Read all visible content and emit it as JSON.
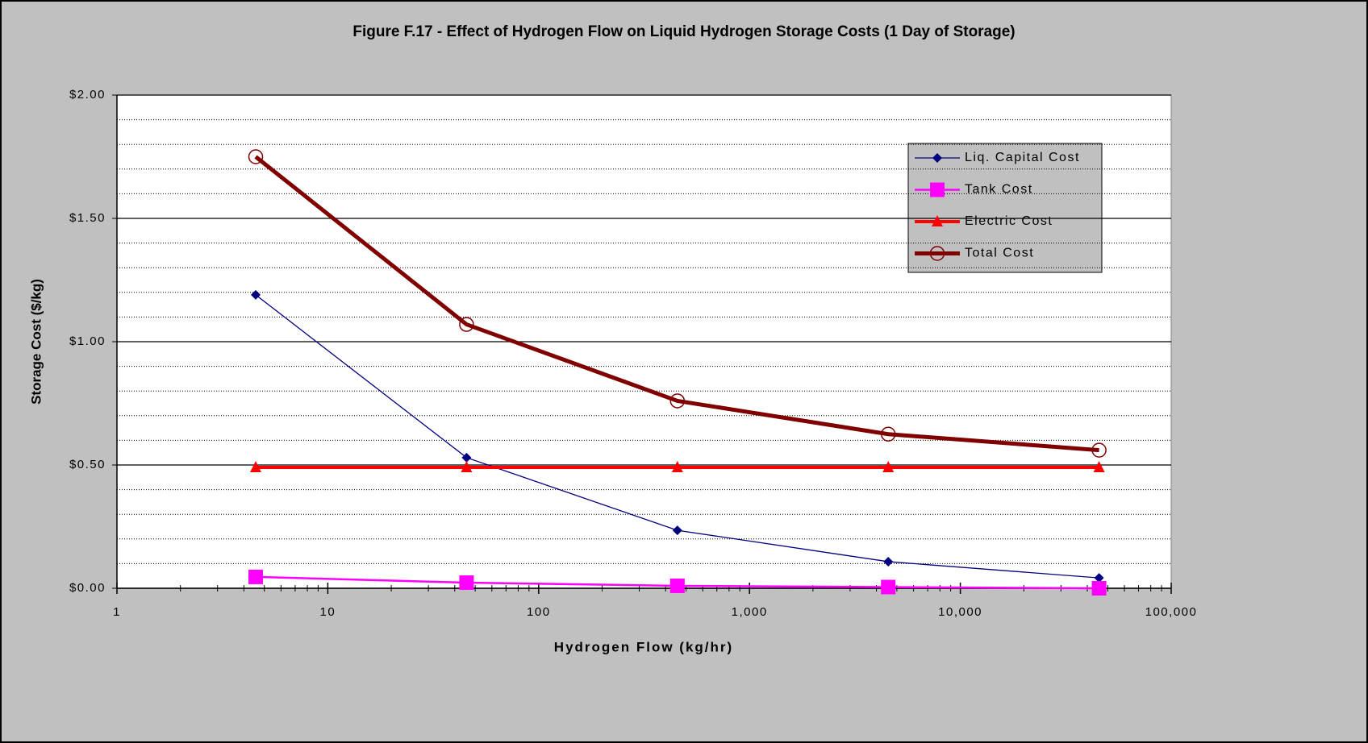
{
  "chart_data": {
    "type": "line",
    "title": "Figure F.17 - Effect of Hydrogen Flow on Liquid Hydrogen Storage Costs (1 Day of Storage)",
    "xlabel": "Hydrogen Flow (kg/hr)",
    "ylabel": "Storage Cost ($/kg)",
    "x": [
      4.55,
      45.5,
      455,
      4550,
      45500
    ],
    "xscale": "log",
    "xlim": [
      1,
      100000
    ],
    "xticks": [
      1,
      10,
      100,
      {
        "value": 1000,
        "label": "1,000"
      },
      {
        "value": 10000,
        "label": "10,000"
      },
      {
        "value": 100000,
        "label": "100,000"
      }
    ],
    "xminorticks": [
      2,
      3,
      4,
      5,
      6,
      7,
      8,
      9,
      20,
      30,
      40,
      50,
      60,
      70,
      80,
      90,
      200,
      300,
      400,
      500,
      600,
      700,
      800,
      900,
      2000,
      3000,
      4000,
      5000,
      6000,
      7000,
      8000,
      9000,
      20000,
      30000,
      40000,
      50000,
      60000,
      70000,
      80000,
      90000
    ],
    "ylim": [
      0,
      2
    ],
    "yticks": [
      {
        "value": 0,
        "label": "$0.00"
      },
      {
        "value": 0.5,
        "label": "$0.50"
      },
      {
        "value": 1,
        "label": "$1.00"
      },
      {
        "value": 1.5,
        "label": "$1.50"
      },
      {
        "value": 2,
        "label": "$2.00"
      }
    ],
    "yminorticks": [
      0.1,
      0.2,
      0.3,
      0.4,
      0.6,
      0.7,
      0.8,
      0.9,
      1.1,
      1.2,
      1.3,
      1.4,
      1.6,
      1.7,
      1.8,
      1.9
    ],
    "grid": true,
    "legend": "upper right",
    "series": [
      {
        "name": "Liq. Capital Cost",
        "color": "#000080",
        "marker": "diamond",
        "values": [
          1.19,
          0.53,
          0.235,
          0.108,
          0.042
        ]
      },
      {
        "name": "Tank Cost",
        "color": "#ff00ff",
        "marker": "square",
        "values": [
          0.046,
          0.023,
          0.01,
          0.005,
          0.0
        ]
      },
      {
        "name": "Electric Cost",
        "color": "#ff0000",
        "marker": "triangle",
        "values": [
          0.49,
          0.49,
          0.49,
          0.49,
          0.49
        ]
      },
      {
        "name": "Total Cost",
        "color": "#800000",
        "marker": "circle",
        "values": [
          1.75,
          1.07,
          0.76,
          0.625,
          0.56
        ]
      }
    ]
  }
}
